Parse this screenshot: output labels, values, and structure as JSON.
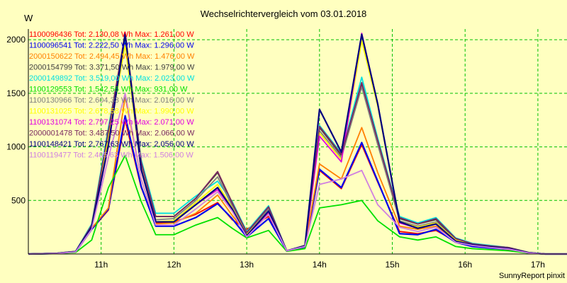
{
  "chart_data": {
    "type": "line",
    "title": "Wechselrichtervergleich vom 03.01.2018",
    "ylabel": "W",
    "footer": "SunnyReport pinxit",
    "ylim": [
      0,
      2100
    ],
    "xlim": [
      10.0,
      17.4
    ],
    "y_ticks": [
      500,
      1000,
      1500,
      2000
    ],
    "x_ticks": [
      {
        "v": 11,
        "label": "11h"
      },
      {
        "v": 12,
        "label": "12h"
      },
      {
        "v": 13,
        "label": "13h"
      },
      {
        "v": 14,
        "label": "14h"
      },
      {
        "v": 15,
        "label": "15h"
      },
      {
        "v": 16,
        "label": "16h"
      },
      {
        "v": 17,
        "label": "17h"
      }
    ],
    "grid": true,
    "x": [
      10.0,
      10.4,
      10.65,
      10.87,
      11.1,
      11.33,
      11.55,
      11.75,
      12.0,
      12.3,
      12.6,
      12.8,
      13.0,
      13.3,
      13.55,
      13.8,
      14.0,
      14.3,
      14.58,
      14.8,
      15.1,
      15.35,
      15.6,
      15.87,
      16.1,
      16.35,
      16.6,
      16.87,
      17.1,
      17.4
    ],
    "series": [
      {
        "legend": "1100096436 Tot: 2.130,08 Wh Max: 1.261,00 W",
        "color": "#FF0000",
        "values": [
          0,
          5,
          20,
          230,
          410,
          1250,
          620,
          290,
          300,
          370,
          480,
          320,
          230,
          350,
          30,
          70,
          780,
          610,
          1020,
          670,
          210,
          190,
          220,
          120,
          75,
          60,
          40,
          10,
          0,
          0
        ]
      },
      {
        "legend": "1100096541 Tot: 2.222,50 Wh Max: 1.296,00 W",
        "color": "#0000EE",
        "values": [
          0,
          5,
          20,
          230,
          420,
          1290,
          630,
          260,
          260,
          340,
          470,
          330,
          160,
          330,
          30,
          65,
          790,
          620,
          1040,
          680,
          190,
          180,
          230,
          110,
          70,
          55,
          45,
          10,
          0,
          0
        ]
      },
      {
        "legend": "2000150622 Tot: 2.494,45 Wh Max: 1.476,00 W",
        "color": "#FF8000",
        "values": [
          0,
          5,
          22,
          240,
          430,
          1470,
          700,
          280,
          290,
          380,
          550,
          360,
          190,
          380,
          30,
          70,
          840,
          700,
          1180,
          760,
          260,
          230,
          260,
          130,
          80,
          65,
          50,
          12,
          0,
          0
        ]
      },
      {
        "legend": "2000154799 Tot: 3.371,50 Wh Max: 1.979,00 W",
        "color": "#404040",
        "values": [
          0,
          8,
          25,
          270,
          1140,
          1970,
          850,
          350,
          350,
          520,
          760,
          470,
          200,
          440,
          30,
          80,
          1180,
          920,
          1580,
          1050,
          330,
          280,
          320,
          140,
          95,
          75,
          60,
          15,
          0,
          0
        ]
      },
      {
        "legend": "2000149892 Tot: 3.519,00 Wh Max: 2.023,00 W",
        "color": "#00E0E0",
        "values": [
          0,
          8,
          25,
          280,
          1180,
          2010,
          880,
          380,
          380,
          540,
          680,
          490,
          210,
          450,
          30,
          80,
          1200,
          940,
          1650,
          1080,
          350,
          290,
          340,
          150,
          100,
          80,
          60,
          15,
          0,
          0
        ]
      },
      {
        "legend": "1100129553 Tot: 1.542,56 Wh Max: 931,00 W",
        "color": "#00E000",
        "values": [
          0,
          4,
          15,
          130,
          620,
          920,
          490,
          180,
          180,
          270,
          340,
          240,
          150,
          220,
          25,
          50,
          430,
          460,
          500,
          310,
          160,
          130,
          160,
          70,
          50,
          40,
          30,
          8,
          0,
          0
        ]
      },
      {
        "legend": "1100130966 Tot: 2.604,33 Wh Max: 2.016,00 W",
        "color": "#808080",
        "values": [
          0,
          6,
          22,
          250,
          1100,
          1960,
          820,
          320,
          330,
          500,
          720,
          450,
          190,
          420,
          30,
          75,
          1150,
          900,
          1560,
          1020,
          310,
          260,
          300,
          130,
          90,
          70,
          55,
          12,
          0,
          0
        ]
      },
      {
        "legend": "1100131025 Tot: 2.678,58 Wh Max: 1.990,00 W",
        "color": "#FFFF00",
        "values": [
          0,
          6,
          22,
          250,
          1080,
          1950,
          800,
          300,
          310,
          480,
          650,
          430,
          180,
          400,
          30,
          75,
          1130,
          880,
          1990,
          1380,
          300,
          250,
          290,
          130,
          90,
          70,
          55,
          12,
          0,
          0
        ]
      },
      {
        "legend": "1100131074 Tot: 2.797,25 Wh Max: 2.071,00 W",
        "color": "#E000E0",
        "values": [
          0,
          6,
          22,
          250,
          1000,
          2070,
          780,
          300,
          300,
          460,
          600,
          420,
          170,
          390,
          30,
          75,
          1100,
          860,
          2060,
          1400,
          290,
          240,
          280,
          120,
          85,
          65,
          50,
          12,
          0,
          0
        ]
      },
      {
        "legend": "2000001478 Tot: 3.487,50 Wh Max: 2.066,00 W",
        "color": "#7A2860",
        "values": [
          0,
          8,
          25,
          270,
          1150,
          2060,
          860,
          350,
          350,
          520,
          770,
          480,
          200,
          440,
          30,
          80,
          1190,
          930,
          1600,
          1060,
          340,
          280,
          330,
          145,
          95,
          75,
          60,
          15,
          0,
          0
        ]
      },
      {
        "legend": "1100148421 Tot: 2.767,63 Wh Max: 2.056,00 W",
        "color": "#000080",
        "values": [
          0,
          6,
          22,
          250,
          1020,
          2050,
          790,
          300,
          300,
          460,
          620,
          420,
          170,
          400,
          30,
          75,
          1350,
          950,
          2050,
          1400,
          300,
          240,
          280,
          120,
          85,
          65,
          50,
          12,
          0,
          0
        ]
      },
      {
        "legend": "1100119477 Tot: 2.405,63 Wh Max: 1.506,00 W",
        "color": "#D080E0",
        "values": [
          0,
          5,
          20,
          230,
          900,
          1500,
          700,
          270,
          270,
          420,
          580,
          400,
          160,
          370,
          30,
          70,
          650,
          700,
          780,
          460,
          250,
          210,
          250,
          110,
          80,
          60,
          45,
          10,
          0,
          0
        ]
      }
    ]
  }
}
